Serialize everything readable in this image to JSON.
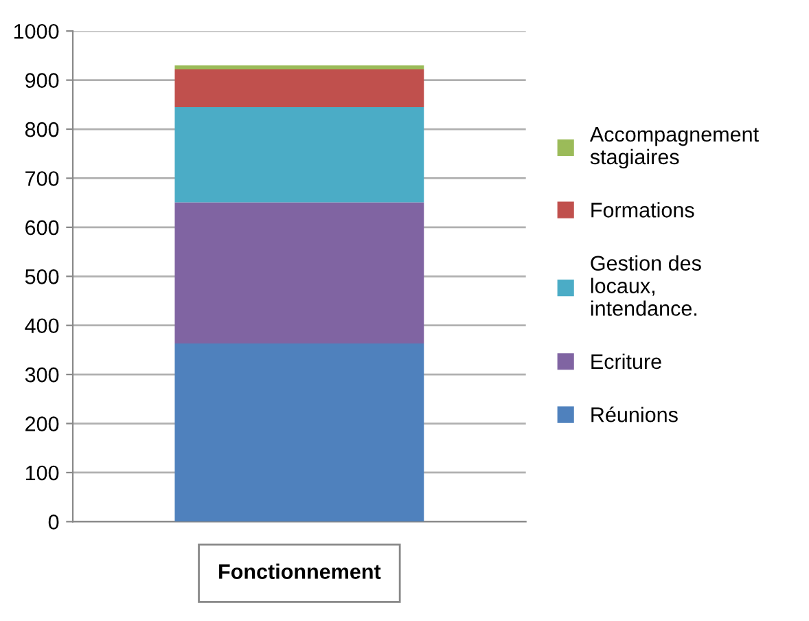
{
  "chart_data": {
    "type": "bar",
    "stacked": true,
    "categories": [
      "Fonctionnement"
    ],
    "series": [
      {
        "name": "Réunions",
        "color": "#4f81bd",
        "values": [
          363
        ]
      },
      {
        "name": "Ecriture",
        "color": "#8064a2",
        "values": [
          288
        ]
      },
      {
        "name": "Gestion des locaux, intendance.",
        "color": "#4bacc6",
        "values": [
          194
        ]
      },
      {
        "name": "Formations",
        "color": "#c0504d",
        "values": [
          77
        ]
      },
      {
        "name": "Accompagnement stagiaires",
        "color": "#9bbb59",
        "values": [
          8
        ]
      }
    ],
    "ylim": [
      0,
      1000
    ],
    "yticks": [
      0,
      100,
      200,
      300,
      400,
      500,
      600,
      700,
      800,
      900,
      1000
    ],
    "grid": "y",
    "legend": "right"
  }
}
